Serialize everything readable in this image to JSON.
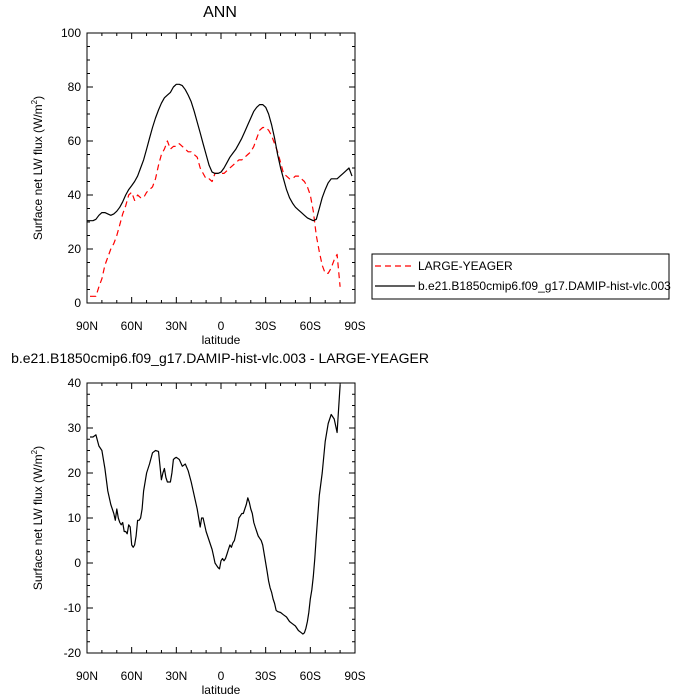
{
  "chart_data": [
    {
      "type": "line",
      "title": "ANN",
      "xlabel": "latitude",
      "ylabel": "Surface net LW flux (W/m",
      "ylabel_sup": "2",
      "ylabel_close": ")",
      "xlim": [
        90,
        -90
      ],
      "ylim": [
        0,
        100
      ],
      "x_ticks": [
        90,
        60,
        30,
        0,
        -30,
        -60,
        -90
      ],
      "x_tick_labels": [
        "90N",
        "60N",
        "30N",
        "0",
        "30S",
        "60S",
        "90S"
      ],
      "y_ticks": [
        0,
        20,
        40,
        60,
        80,
        100
      ],
      "y_tick_labels": [
        "0",
        "20",
        "40",
        "60",
        "80",
        "100"
      ],
      "legend_position": "right",
      "series": [
        {
          "name": "LARGE-YEAGER",
          "color": "#ff0000",
          "dash": "dashed",
          "x": [
            88,
            84,
            82,
            80,
            78,
            74,
            72,
            70,
            68,
            66,
            64,
            62,
            60,
            58,
            56,
            54,
            52,
            50,
            46,
            44,
            42,
            40,
            38,
            36,
            34,
            32,
            30,
            28,
            26,
            24,
            22,
            20,
            18,
            16,
            14,
            12,
            10,
            8,
            6,
            4,
            2,
            0,
            -2,
            -4,
            -6,
            -8,
            -10,
            -12,
            -14,
            -16,
            -18,
            -20,
            -22,
            -24,
            -26,
            -28,
            -30,
            -32,
            -34,
            -36,
            -38,
            -40,
            -42,
            -44,
            -46,
            -48,
            -50,
            -52,
            -54,
            -56,
            -58,
            -60,
            -62,
            -64,
            -66,
            -68,
            -70,
            -72,
            -74,
            -76,
            -78,
            -80
          ],
          "values": [
            2.5,
            2.5,
            6,
            9,
            14,
            20,
            22,
            25,
            29,
            33,
            36,
            40,
            41,
            38,
            40,
            39,
            39,
            41,
            43,
            46,
            51,
            55,
            57,
            60,
            57,
            58,
            58,
            59,
            58,
            57,
            56,
            56,
            55,
            54,
            50,
            48,
            46,
            46,
            45,
            48,
            48,
            48,
            48,
            49,
            50,
            51,
            52,
            53,
            53,
            54,
            55,
            56,
            58,
            61,
            64,
            65,
            65,
            64,
            62,
            59,
            56,
            52,
            48,
            47,
            46,
            46,
            47,
            47,
            46,
            45,
            43,
            40,
            34,
            25,
            19,
            14,
            11,
            11,
            13,
            16,
            18,
            6
          ]
        },
        {
          "name": "b.e21.B1850cmip6.f09_g17.DAMIP-hist-vlc.003",
          "color": "#000000",
          "dash": "solid",
          "x": [
            90,
            86,
            84,
            82,
            80,
            78,
            76,
            74,
            72,
            70,
            68,
            66,
            64,
            62,
            60,
            58,
            56,
            54,
            52,
            50,
            48,
            46,
            44,
            42,
            40,
            38,
            36,
            34,
            32,
            30,
            28,
            26,
            24,
            22,
            20,
            18,
            16,
            14,
            12,
            10,
            8,
            6,
            4,
            2,
            0,
            -2,
            -4,
            -6,
            -8,
            -10,
            -12,
            -14,
            -16,
            -18,
            -20,
            -22,
            -24,
            -26,
            -28,
            -30,
            -32,
            -34,
            -36,
            -38,
            -40,
            -42,
            -44,
            -46,
            -48,
            -50,
            -52,
            -54,
            -56,
            -58,
            -60,
            -62,
            -64,
            -66,
            -68,
            -70,
            -72,
            -74,
            -76,
            -78,
            -80,
            -82,
            -84,
            -86,
            -88
          ],
          "values": [
            30.5,
            30.5,
            31,
            32.5,
            33.5,
            33.5,
            33,
            32.5,
            33,
            34,
            35.5,
            37.5,
            40,
            42,
            43.5,
            45,
            47,
            50,
            53,
            57,
            61,
            65,
            68.5,
            71.5,
            74,
            76,
            77,
            78,
            80,
            81,
            81,
            80.5,
            79,
            77,
            74.5,
            71,
            67,
            63,
            59,
            55,
            51,
            48.5,
            48,
            48,
            48.5,
            50,
            52,
            54,
            55.5,
            57,
            59,
            61,
            63.5,
            66,
            68.5,
            71,
            72.5,
            73.5,
            73.5,
            72.5,
            70,
            66,
            61,
            55,
            50,
            46,
            42,
            39,
            37,
            35.5,
            34.5,
            33.5,
            32.5,
            31.5,
            31,
            30.5,
            31,
            35,
            39,
            42,
            44.5,
            46,
            46,
            46,
            47,
            48,
            49,
            50,
            47
          ]
        }
      ]
    },
    {
      "type": "line",
      "title": "b.e21.B1850cmip6.f09_g17.DAMIP-hist-vlc.003 - LARGE-YEAGER",
      "xlabel": "latitude",
      "ylabel": "Surface net LW flux (W/m",
      "ylabel_sup": "2",
      "ylabel_close": ")",
      "xlim": [
        90,
        -90
      ],
      "ylim": [
        -20,
        40
      ],
      "x_ticks": [
        90,
        60,
        30,
        0,
        -30,
        -60,
        -90
      ],
      "x_tick_labels": [
        "90N",
        "60N",
        "30N",
        "0",
        "30S",
        "60S",
        "90S"
      ],
      "y_ticks": [
        -20,
        -10,
        0,
        10,
        20,
        30,
        40
      ],
      "y_tick_labels": [
        "-20",
        "-10",
        "0",
        "10",
        "20",
        "30",
        "40"
      ],
      "series": [
        {
          "color": "#000000",
          "dash": "solid",
          "x": [
            88,
            86,
            84,
            82,
            80,
            78,
            76,
            74,
            72,
            71,
            70,
            69,
            68,
            67,
            66,
            65,
            64,
            63,
            62,
            61,
            60,
            59,
            58,
            57,
            56,
            55,
            54,
            53,
            52,
            51,
            50,
            48,
            46,
            44,
            42,
            40,
            39,
            38,
            37,
            36,
            35,
            34,
            33,
            32,
            31,
            30,
            28,
            26,
            24,
            22,
            20,
            18,
            16,
            14,
            13,
            12,
            11,
            10,
            9,
            8,
            7,
            6,
            5,
            4,
            3,
            2,
            1,
            0,
            -1,
            -2,
            -3,
            -4,
            -5,
            -6,
            -7,
            -8,
            -9,
            -10,
            -11,
            -12,
            -13,
            -14,
            -15,
            -16,
            -17,
            -18,
            -19,
            -20,
            -21,
            -22,
            -23,
            -24,
            -25,
            -26,
            -27,
            -28,
            -29,
            -30,
            -31,
            -32,
            -33,
            -34,
            -35,
            -36,
            -37,
            -38,
            -40,
            -42,
            -44,
            -46,
            -48,
            -50,
            -52,
            -54,
            -55,
            -56,
            -57,
            -58,
            -59,
            -60,
            -61,
            -62,
            -63,
            -64,
            -66,
            -68,
            -70,
            -72,
            -74,
            -76,
            -78,
            -80
          ],
          "values": [
            28,
            28,
            28.5,
            26,
            25,
            21,
            16,
            13,
            11,
            9.5,
            12,
            10,
            9,
            8.5,
            9,
            7,
            7,
            6.5,
            8.5,
            8,
            4,
            3.5,
            4,
            6,
            9.5,
            9.5,
            10,
            12,
            16,
            18,
            20,
            22,
            24.5,
            25,
            24.8,
            18.5,
            20,
            21,
            19,
            18,
            18,
            18,
            20,
            23,
            23.3,
            23.5,
            23,
            21.5,
            22,
            20.5,
            18,
            15,
            12,
            8,
            10,
            10,
            8.5,
            7,
            6,
            5,
            4,
            3,
            1.5,
            0,
            -0.5,
            -1,
            -1.3,
            0.5,
            1,
            0.5,
            1,
            2,
            3,
            4,
            3.5,
            4.5,
            5,
            6.5,
            8,
            10,
            10.5,
            11,
            11,
            12,
            13,
            14.5,
            13.5,
            12,
            11,
            9,
            8,
            7,
            6,
            5.5,
            5,
            4,
            2,
            0,
            -2,
            -4,
            -5.5,
            -6.5,
            -8,
            -9,
            -10.5,
            -10.8,
            -11,
            -11.5,
            -12,
            -13,
            -13.5,
            -14,
            -15,
            -15.5,
            -15.8,
            -15.5,
            -14.5,
            -13,
            -11,
            -8,
            -6,
            -3,
            1,
            6,
            15,
            20,
            27,
            31,
            33,
            32,
            29,
            39.5
          ]
        }
      ]
    }
  ]
}
